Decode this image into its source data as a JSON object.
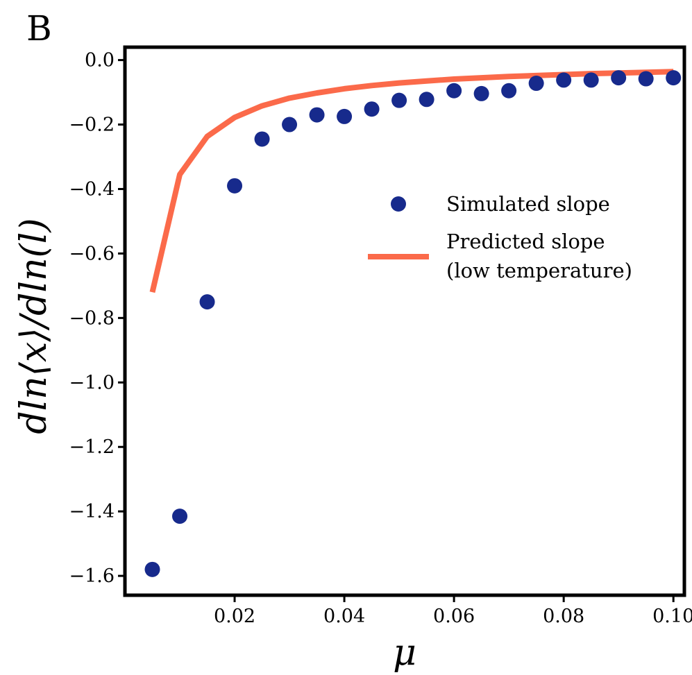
{
  "panel_label": "B",
  "colors": {
    "simulated": "#172a8c",
    "predicted": "#fb6a4a",
    "axes": "#000000"
  },
  "chart_data": {
    "type": "scatter",
    "title": "",
    "xlabel": "μ",
    "ylabel": "dln⟨x⟩/dln(l)",
    "xlim": [
      0.0,
      0.102
    ],
    "ylim": [
      -1.66,
      0.04
    ],
    "xticks": [
      0.02,
      0.04,
      0.06,
      0.08,
      0.1
    ],
    "xtick_labels": [
      "0.02",
      "0.04",
      "0.06",
      "0.08",
      "0.10"
    ],
    "yticks": [
      0.0,
      -0.2,
      -0.4,
      -0.6,
      -0.8,
      -1.0,
      -1.2,
      -1.4,
      -1.6
    ],
    "ytick_labels": [
      "0.0",
      "−0.2",
      "−0.4",
      "−0.6",
      "−0.8",
      "−1.0",
      "−1.2",
      "−1.4",
      "−1.6"
    ],
    "grid": false,
    "legend_position": "center-right",
    "series": [
      {
        "name": "Simulated slope",
        "kind": "scatter",
        "x": [
          0.005,
          0.01,
          0.015,
          0.02,
          0.025,
          0.03,
          0.035,
          0.04,
          0.045,
          0.05,
          0.055,
          0.06,
          0.065,
          0.07,
          0.075,
          0.08,
          0.085,
          0.09,
          0.095,
          0.1
        ],
        "y": [
          -1.58,
          -1.415,
          -0.75,
          -0.39,
          -0.245,
          -0.2,
          -0.17,
          -0.175,
          -0.152,
          -0.125,
          -0.122,
          -0.095,
          -0.104,
          -0.095,
          -0.072,
          -0.062,
          -0.062,
          -0.055,
          -0.058,
          -0.055
        ]
      },
      {
        "name": "Predicted slope\n(low temperature)",
        "kind": "line",
        "x": [
          0.005,
          0.01,
          0.015,
          0.02,
          0.025,
          0.03,
          0.035,
          0.04,
          0.045,
          0.05,
          0.055,
          0.06,
          0.065,
          0.07,
          0.075,
          0.08,
          0.085,
          0.09,
          0.095,
          0.1
        ],
        "y": [
          -0.72,
          -0.355,
          -0.237,
          -0.178,
          -0.142,
          -0.118,
          -0.102,
          -0.089,
          -0.079,
          -0.071,
          -0.065,
          -0.059,
          -0.055,
          -0.051,
          -0.048,
          -0.045,
          -0.042,
          -0.04,
          -0.038,
          -0.036
        ]
      }
    ]
  },
  "legend": {
    "simulated_label": "Simulated slope",
    "predicted_label_line1": "Predicted slope",
    "predicted_label_line2": "(low temperature)"
  }
}
